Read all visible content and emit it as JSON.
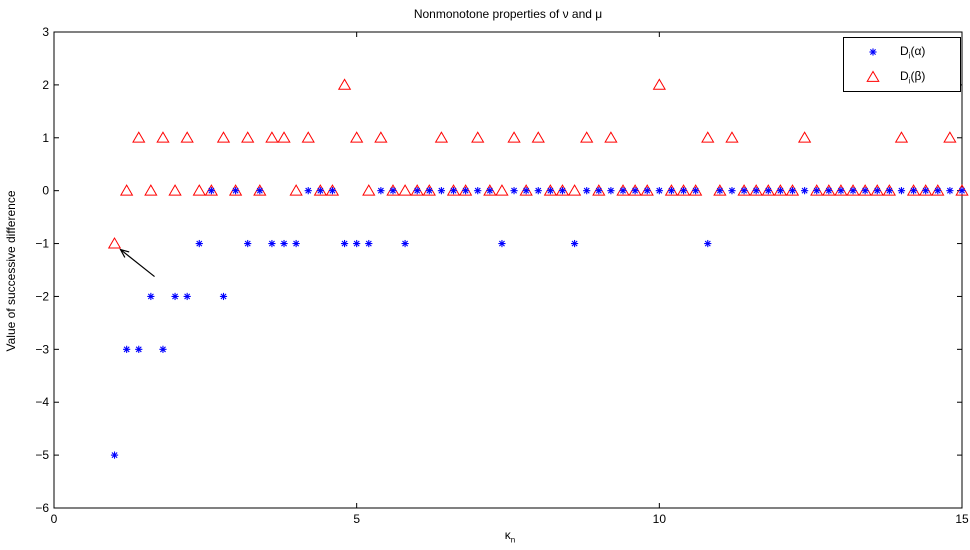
{
  "chart_data": {
    "type": "scatter",
    "title": "Nonmonotone properties of ν and μ",
    "ylabel": "Value of successive difference",
    "xlabel_base": "κ",
    "xlabel_sub": "n",
    "xlim": [
      0,
      15
    ],
    "ylim": [
      -6,
      3
    ],
    "xticks": [
      "0",
      "5",
      "10",
      "15"
    ],
    "yticks": [
      "3",
      "2",
      "1",
      "0",
      "−1",
      "−2",
      "−3",
      "−4",
      "−5",
      "−6"
    ],
    "grid": false,
    "legend_position": "top-right",
    "series": [
      {
        "name_base": "D",
        "name_sub": "i",
        "name_arg": "(α)",
        "marker": "*",
        "color": "#0000ff",
        "x": [
          1.0,
          1.2,
          1.4,
          1.6,
          1.8,
          2.0,
          2.2,
          2.4,
          2.6,
          2.8,
          3.0,
          3.2,
          3.4,
          3.6,
          3.8,
          4.0,
          4.2,
          4.4,
          4.6,
          4.8,
          5.0,
          5.2,
          5.4,
          5.6,
          5.8,
          6.0,
          6.2,
          6.4,
          6.6,
          6.8,
          7.0,
          7.2,
          7.4,
          7.6,
          7.8,
          8.0,
          8.2,
          8.4,
          8.6,
          8.8,
          9.0,
          9.2,
          9.4,
          9.6,
          9.8,
          10.0,
          10.2,
          10.4,
          10.6,
          10.8,
          11.0,
          11.2,
          11.4,
          11.6,
          11.8,
          12.0,
          12.2,
          12.4,
          12.6,
          12.8,
          13.0,
          13.2,
          13.4,
          13.6,
          13.8,
          14.0,
          14.2,
          14.4,
          14.6,
          14.8,
          15.0
        ],
        "y": [
          -5,
          -3,
          -3,
          -2,
          -3,
          -2,
          -2,
          -1,
          0,
          -2,
          0,
          -1,
          0,
          -1,
          -1,
          -1,
          0,
          0,
          0,
          -1,
          -1,
          -1,
          0,
          0,
          -1,
          0,
          0,
          0,
          0,
          0,
          0,
          0,
          -1,
          0,
          0,
          0,
          0,
          0,
          -1,
          0,
          0,
          0,
          0,
          0,
          0,
          0,
          0,
          0,
          0,
          -1,
          0,
          0,
          0,
          0,
          0,
          0,
          0,
          0,
          0,
          0,
          0,
          0,
          0,
          0,
          0,
          0,
          0,
          0,
          0,
          0,
          0
        ]
      },
      {
        "name_base": "D",
        "name_sub": "i",
        "name_arg": "(β)",
        "marker": "triangle",
        "color": "#ff0000",
        "x": [
          1.0,
          1.2,
          1.4,
          1.6,
          1.8,
          2.0,
          2.2,
          2.4,
          2.6,
          2.8,
          3.0,
          3.2,
          3.4,
          3.6,
          3.8,
          4.0,
          4.2,
          4.4,
          4.6,
          4.8,
          5.0,
          5.2,
          5.4,
          5.6,
          5.8,
          6.0,
          6.2,
          6.4,
          6.6,
          6.8,
          7.0,
          7.2,
          7.4,
          7.6,
          7.8,
          8.0,
          8.2,
          8.4,
          8.6,
          8.8,
          9.0,
          9.2,
          9.4,
          9.6,
          9.8,
          10.0,
          10.2,
          10.4,
          10.6,
          10.8,
          11.0,
          11.2,
          11.4,
          11.6,
          11.8,
          12.0,
          12.2,
          12.4,
          12.6,
          12.8,
          13.0,
          13.2,
          13.4,
          13.6,
          13.8,
          14.0,
          14.2,
          14.4,
          14.6,
          14.8,
          15.0
        ],
        "y": [
          -1,
          0,
          1,
          0,
          1,
          0,
          1,
          0,
          0,
          1,
          0,
          1,
          0,
          1,
          1,
          0,
          1,
          0,
          0,
          2,
          1,
          0,
          1,
          0,
          0,
          0,
          0,
          1,
          0,
          0,
          1,
          0,
          0,
          1,
          0,
          1,
          0,
          0,
          0,
          1,
          0,
          1,
          0,
          0,
          0,
          2,
          0,
          0,
          0,
          1,
          0,
          1,
          0,
          0,
          0,
          0,
          0,
          1,
          0,
          0,
          0,
          0,
          0,
          0,
          0,
          1,
          0,
          0,
          0,
          1,
          0
        ]
      }
    ],
    "annotation": {
      "type": "arrow",
      "x": 1.0,
      "y": -1
    }
  }
}
